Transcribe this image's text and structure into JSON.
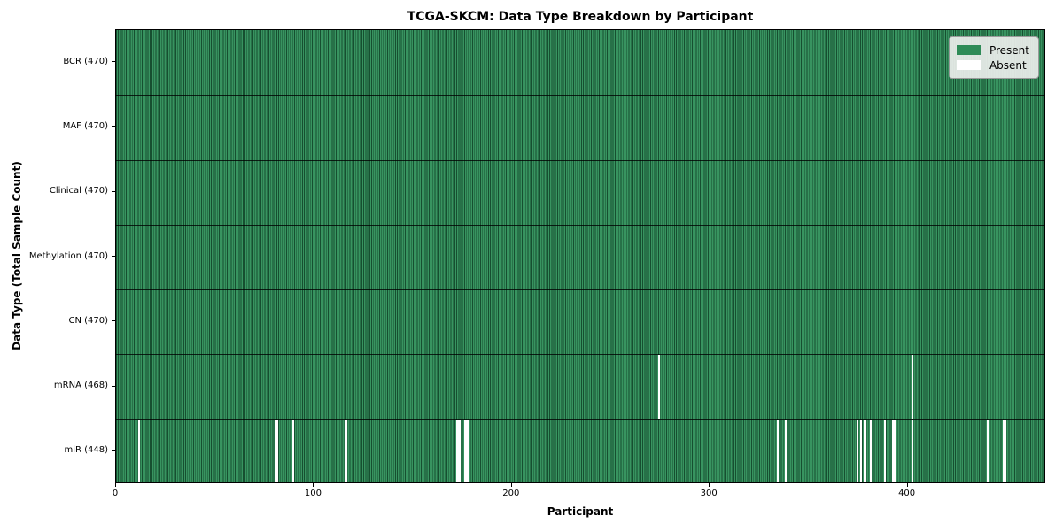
{
  "chart_data": {
    "type": "heatmap",
    "title": "TCGA-SKCM: Data Type Breakdown by Participant",
    "xlabel": "Participant",
    "ylabel": "Data Type (Total Sample Count)",
    "x_ticks": [
      0,
      100,
      200,
      300,
      400
    ],
    "xlim": [
      0,
      470
    ],
    "grid": false,
    "legend_position": "upper right",
    "legend": [
      {
        "label": "Present",
        "color": "#2e8b57"
      },
      {
        "label": "Absent",
        "color": "#ffffff"
      }
    ],
    "rows": [
      {
        "label": "BCR (470)",
        "data_type": "BCR",
        "total": 470,
        "absent": []
      },
      {
        "label": "MAF (470)",
        "data_type": "MAF",
        "total": 470,
        "absent": []
      },
      {
        "label": "Clinical (470)",
        "data_type": "Clinical",
        "total": 470,
        "absent": []
      },
      {
        "label": "Methylation (470)",
        "data_type": "Methylation",
        "total": 470,
        "absent": []
      },
      {
        "label": "CN (470)",
        "data_type": "CN",
        "total": 470,
        "absent": []
      },
      {
        "label": "mRNA (468)",
        "data_type": "mRNA",
        "total": 468,
        "absent": [
          {
            "p": 274,
            "span": 1
          },
          {
            "p": 402,
            "span": 1
          }
        ]
      },
      {
        "label": "miR (448)",
        "data_type": "miR",
        "total": 448,
        "absent": [
          {
            "p": 11,
            "span": 1
          },
          {
            "p": 80,
            "span": 2
          },
          {
            "p": 89,
            "span": 1
          },
          {
            "p": 116,
            "span": 1
          },
          {
            "p": 172,
            "span": 2
          },
          {
            "p": 176,
            "span": 2
          },
          {
            "p": 334,
            "span": 1
          },
          {
            "p": 338,
            "span": 1
          },
          {
            "p": 374,
            "span": 1
          },
          {
            "p": 376,
            "span": 1
          },
          {
            "p": 378,
            "span": 1
          },
          {
            "p": 381,
            "span": 1
          },
          {
            "p": 388,
            "span": 1
          },
          {
            "p": 392,
            "span": 2
          },
          {
            "p": 402,
            "span": 1
          },
          {
            "p": 440,
            "span": 1
          },
          {
            "p": 448,
            "span": 2
          }
        ]
      }
    ]
  }
}
